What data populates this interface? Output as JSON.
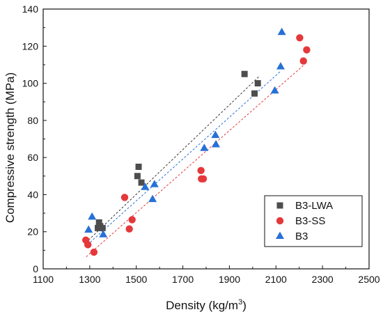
{
  "chart_data": {
    "type": "scatter",
    "title": "",
    "xlabel": "Density (kg/m³)",
    "xlabel_main": "Density (kg/m",
    "xlabel_sup": "3",
    "xlabel_tail": ")",
    "ylabel": "Compressive strength (MPa)",
    "xlim": [
      1100,
      2500
    ],
    "ylim": [
      0,
      140
    ],
    "x_ticks": [
      "1100",
      "1300",
      "1500",
      "1700",
      "1900",
      "2100",
      "2300",
      "2500"
    ],
    "y_ticks": [
      "0",
      "20",
      "40",
      "60",
      "80",
      "100",
      "120",
      "140"
    ],
    "grid": false,
    "legend_position": "bottom-right",
    "series": [
      {
        "name": "B3-LWA",
        "marker": "square",
        "color": "#4d4d4d",
        "fit_color": "#333333",
        "fit_x": [
          1295,
          2030
        ],
        "fit_y": [
          15.5,
          104
        ],
        "points": [
          {
            "x": 1335,
            "y": 22
          },
          {
            "x": 1340,
            "y": 25
          },
          {
            "x": 1345,
            "y": 23
          },
          {
            "x": 1355,
            "y": 22
          },
          {
            "x": 1505,
            "y": 50
          },
          {
            "x": 1510,
            "y": 55
          },
          {
            "x": 1522,
            "y": 46.5
          },
          {
            "x": 1965,
            "y": 105
          },
          {
            "x": 2008,
            "y": 94.5
          },
          {
            "x": 2022,
            "y": 100
          }
        ]
      },
      {
        "name": "B3-SS",
        "marker": "circle",
        "color": "#e5383b",
        "fit_color": "#e5383b",
        "fit_x": [
          1285,
          2230
        ],
        "fit_y": [
          6.5,
          111
        ],
        "points": [
          {
            "x": 1283,
            "y": 15.5
          },
          {
            "x": 1292,
            "y": 13
          },
          {
            "x": 1318,
            "y": 9
          },
          {
            "x": 1450,
            "y": 38.5
          },
          {
            "x": 1470,
            "y": 21.5
          },
          {
            "x": 1482,
            "y": 26.5
          },
          {
            "x": 1778,
            "y": 53
          },
          {
            "x": 1780,
            "y": 48.5
          },
          {
            "x": 1788,
            "y": 48.5
          },
          {
            "x": 2202,
            "y": 124.5
          },
          {
            "x": 2218,
            "y": 112
          },
          {
            "x": 2232,
            "y": 118
          }
        ]
      },
      {
        "name": "B3",
        "marker": "triangle",
        "color": "#2770d6",
        "fit_color": "#2770d6",
        "fit_x": [
          1290,
          2120
        ],
        "fit_y": [
          13,
          106.5
        ],
        "points": [
          {
            "x": 1295,
            "y": 21
          },
          {
            "x": 1310,
            "y": 28
          },
          {
            "x": 1358,
            "y": 18.5
          },
          {
            "x": 1538,
            "y": 44
          },
          {
            "x": 1570,
            "y": 37.5
          },
          {
            "x": 1578,
            "y": 45.5
          },
          {
            "x": 1792,
            "y": 65
          },
          {
            "x": 1840,
            "y": 72
          },
          {
            "x": 1842,
            "y": 67
          },
          {
            "x": 2095,
            "y": 96
          },
          {
            "x": 2120,
            "y": 109
          },
          {
            "x": 2125,
            "y": 127.5
          }
        ]
      }
    ]
  }
}
